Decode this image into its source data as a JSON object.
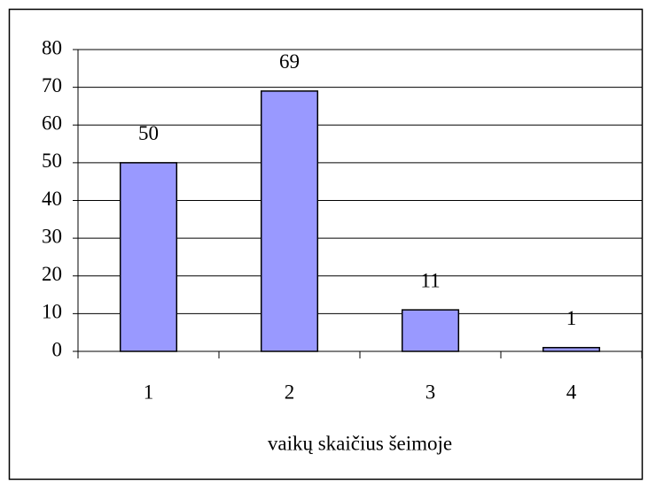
{
  "chart_data": {
    "type": "bar",
    "x_label": "vaikų skaičius šeimoje",
    "categories": [
      "1",
      "2",
      "3",
      "4"
    ],
    "values": [
      50,
      69,
      11,
      1
    ],
    "color": "#9999ff",
    "ylim": [
      0,
      80
    ],
    "yticks": [
      0,
      10,
      20,
      30,
      40,
      50,
      60,
      70,
      80
    ],
    "grid": true
  }
}
